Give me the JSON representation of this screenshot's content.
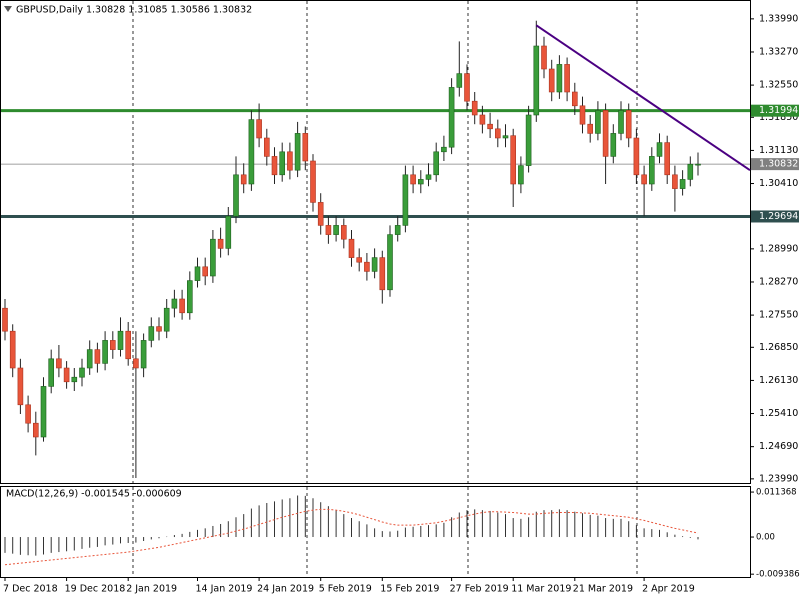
{
  "chart_data": {
    "type": "candlestick",
    "title": "GBPUSD,Daily  1.30828 1.31085 1.30586 1.30832",
    "categories": [
      "7 Dec 2018",
      null,
      null,
      null,
      null,
      null,
      null,
      null,
      "19 Dec 2018",
      null,
      null,
      null,
      null,
      null,
      null,
      null,
      "2 Jan 2019",
      null,
      null,
      null,
      null,
      null,
      null,
      null,
      null,
      "14 Jan 2019",
      null,
      null,
      null,
      null,
      null,
      null,
      null,
      "24 Jan 2019",
      null,
      null,
      null,
      null,
      null,
      null,
      null,
      "5 Feb 2019",
      null,
      null,
      null,
      null,
      null,
      null,
      null,
      "15 Feb 2019",
      null,
      null,
      null,
      null,
      null,
      null,
      null,
      null,
      "27 Feb 2019",
      null,
      null,
      null,
      null,
      null,
      null,
      null,
      "11 Mar 2019",
      null,
      null,
      null,
      null,
      null,
      null,
      null,
      "21 Mar 2019",
      null,
      null,
      null,
      null,
      null,
      null,
      null,
      null,
      "2 Apr 2019",
      null,
      null,
      null,
      null,
      null,
      null,
      null
    ],
    "open": [
      1.277,
      1.272,
      1.264,
      1.256,
      1.252,
      1.249,
      1.26,
      1.266,
      1.264,
      1.261,
      1.262,
      1.264,
      1.268,
      1.265,
      1.27,
      1.268,
      1.272,
      1.266,
      1.264,
      1.27,
      1.273,
      1.272,
      1.277,
      1.279,
      1.276,
      1.283,
      1.286,
      1.284,
      1.292,
      1.29,
      1.297,
      1.306,
      1.304,
      1.318,
      1.314,
      1.31,
      1.306,
      1.311,
      1.307,
      1.315,
      1.309,
      1.3,
      1.295,
      1.293,
      1.295,
      1.292,
      1.288,
      1.287,
      1.285,
      1.288,
      1.281,
      1.293,
      1.295,
      1.306,
      1.304,
      1.305,
      1.306,
      1.311,
      1.312,
      1.325,
      1.328,
      1.322,
      1.319,
      1.317,
      1.316,
      1.314,
      1.3145,
      1.304,
      1.308,
      1.319,
      1.334,
      1.329,
      1.324,
      1.33,
      1.324,
      1.321,
      1.317,
      1.315,
      1.32,
      1.31,
      1.315,
      1.32,
      1.314,
      1.306,
      1.304,
      1.31,
      1.313,
      1.306,
      1.303,
      1.305,
      1.30828
    ],
    "high": [
      1.279,
      1.2735,
      1.266,
      1.258,
      1.2545,
      1.262,
      1.268,
      1.269,
      1.2655,
      1.264,
      1.266,
      1.27,
      1.2695,
      1.272,
      1.272,
      1.275,
      1.274,
      1.272,
      1.2715,
      1.275,
      1.275,
      1.279,
      1.281,
      1.281,
      1.285,
      1.288,
      1.288,
      1.294,
      1.2945,
      1.299,
      1.31,
      1.3085,
      1.32,
      1.3215,
      1.316,
      1.312,
      1.313,
      1.313,
      1.3175,
      1.3165,
      1.3105,
      1.302,
      1.297,
      1.297,
      1.2965,
      1.294,
      1.29,
      1.289,
      1.29,
      1.2895,
      1.295,
      1.297,
      1.308,
      1.308,
      1.307,
      1.3085,
      1.313,
      1.3145,
      1.327,
      1.335,
      1.33,
      1.324,
      1.321,
      1.3195,
      1.318,
      1.317,
      1.316,
      1.31,
      1.321,
      1.3395,
      1.336,
      1.331,
      1.332,
      1.3315,
      1.326,
      1.323,
      1.319,
      1.322,
      1.3215,
      1.317,
      1.322,
      1.3215,
      1.316,
      1.308,
      1.312,
      1.315,
      1.3145,
      1.308,
      1.307,
      1.31,
      1.31085
    ],
    "low": [
      1.27,
      1.262,
      1.254,
      1.25,
      1.245,
      1.248,
      1.2585,
      1.262,
      1.2595,
      1.259,
      1.26,
      1.2625,
      1.263,
      1.2635,
      1.266,
      1.2665,
      1.2645,
      1.2401,
      1.262,
      1.2685,
      1.27,
      1.2705,
      1.275,
      1.2745,
      1.2745,
      1.2815,
      1.282,
      1.2825,
      1.288,
      1.2885,
      1.2955,
      1.302,
      1.3025,
      1.312,
      1.308,
      1.304,
      1.3045,
      1.305,
      1.3055,
      1.307,
      1.298,
      1.293,
      1.291,
      1.2915,
      1.29,
      1.286,
      1.285,
      1.283,
      1.2835,
      1.278,
      1.2795,
      1.2915,
      1.2935,
      1.302,
      1.302,
      1.3035,
      1.3045,
      1.309,
      1.3105,
      1.323,
      1.32,
      1.317,
      1.315,
      1.314,
      1.312,
      1.312,
      1.299,
      1.302,
      1.3065,
      1.3175,
      1.327,
      1.322,
      1.3225,
      1.322,
      1.319,
      1.315,
      1.313,
      1.3135,
      1.304,
      1.3085,
      1.3135,
      1.312,
      1.304,
      1.297,
      1.3025,
      1.3085,
      1.304,
      1.298,
      1.3015,
      1.3035,
      1.30586
    ],
    "close": [
      1.272,
      1.264,
      1.256,
      1.252,
      1.249,
      1.26,
      1.266,
      1.264,
      1.261,
      1.262,
      1.264,
      1.268,
      1.265,
      1.27,
      1.268,
      1.272,
      1.266,
      1.264,
      1.27,
      1.273,
      1.272,
      1.277,
      1.279,
      1.276,
      1.283,
      1.286,
      1.284,
      1.292,
      1.29,
      1.297,
      1.306,
      1.304,
      1.318,
      1.314,
      1.31,
      1.306,
      1.311,
      1.307,
      1.315,
      1.309,
      1.3,
      1.295,
      1.293,
      1.295,
      1.292,
      1.288,
      1.287,
      1.285,
      1.288,
      1.281,
      1.293,
      1.295,
      1.306,
      1.304,
      1.305,
      1.306,
      1.311,
      1.312,
      1.325,
      1.328,
      1.322,
      1.319,
      1.317,
      1.316,
      1.314,
      1.3145,
      1.304,
      1.308,
      1.319,
      1.334,
      1.329,
      1.324,
      1.33,
      1.324,
      1.321,
      1.317,
      1.315,
      1.32,
      1.31,
      1.315,
      1.32,
      1.314,
      1.306,
      1.304,
      1.31,
      1.313,
      1.306,
      1.303,
      1.305,
      1.3083,
      1.30832
    ],
    "up_color": "#3a9d3a",
    "down_color": "#e8553a",
    "ylim": [
      1.239,
      1.344
    ],
    "yticks": [
      {
        "value": 1.3399,
        "label": "1.33990"
      },
      {
        "value": 1.3327,
        "label": "1.33270"
      },
      {
        "value": 1.3255,
        "label": "1.32550"
      },
      {
        "value": 1.3185,
        "label": "1.31850"
      },
      {
        "value": 1.3113,
        "label": "1.31130"
      },
      {
        "value": 1.3041,
        "label": "1.30410"
      },
      {
        "value": 1.2969,
        "label": "1.29690"
      },
      {
        "value": 1.2899,
        "label": "1.28990"
      },
      {
        "value": 1.2827,
        "label": "1.28270"
      },
      {
        "value": 1.2755,
        "label": "1.27550"
      },
      {
        "value": 1.2685,
        "label": "1.26850"
      },
      {
        "value": 1.2613,
        "label": "1.26130"
      },
      {
        "value": 1.2541,
        "label": "1.25410"
      },
      {
        "value": 1.2469,
        "label": "1.24690"
      },
      {
        "value": 1.2399,
        "label": "1.23990"
      }
    ],
    "levels": [
      {
        "value": 1.31994,
        "label": "1.31994",
        "color": "#2e8b2e"
      },
      {
        "value": 1.30832,
        "label": "1.30832",
        "color": "#808080"
      },
      {
        "value": 1.29694,
        "label": "1.29694",
        "color": "#2f4f4f"
      }
    ],
    "trendline": {
      "x": [
        69,
        96.75
      ],
      "values": [
        1.3385,
        1.307
      ],
      "color": "#4b0082"
    },
    "macd": {
      "type": "bar",
      "title": "MACD(12,26,9) -0.001545 -0.000609",
      "histogram": [
        -0.004,
        -0.0042,
        -0.0045,
        -0.0046,
        -0.0047,
        -0.0044,
        -0.004,
        -0.0038,
        -0.0036,
        -0.0034,
        -0.003,
        -0.0027,
        -0.0025,
        -0.0021,
        -0.0019,
        -0.0016,
        -0.0015,
        -0.0014,
        -0.001,
        -0.0006,
        -0.0003,
        0.0001,
        0.0005,
        0.0008,
        0.0013,
        0.0018,
        0.0022,
        0.0028,
        0.0033,
        0.004,
        0.005,
        0.0058,
        0.0072,
        0.008,
        0.0086,
        0.009,
        0.0095,
        0.0098,
        0.0105,
        0.0104,
        0.0098,
        0.0088,
        0.0078,
        0.0068,
        0.0058,
        0.0048,
        0.004,
        0.0032,
        0.0022,
        0.0015,
        0.0014,
        0.0016,
        0.0024,
        0.0026,
        0.0028,
        0.003,
        0.0032,
        0.0036,
        0.005,
        0.0062,
        0.0068,
        0.007,
        0.0068,
        0.0066,
        0.0062,
        0.0058,
        0.0048,
        0.0046,
        0.005,
        0.0064,
        0.0068,
        0.0068,
        0.007,
        0.0068,
        0.0064,
        0.006,
        0.0056,
        0.0054,
        0.0048,
        0.0046,
        0.0046,
        0.004,
        0.003,
        0.0022,
        0.002,
        0.0018,
        0.0012,
        0.0006,
        0.0002,
        -0.0002,
        -0.0006
      ],
      "signal": [
        -0.007,
        -0.0068,
        -0.0066,
        -0.0064,
        -0.0062,
        -0.006,
        -0.0058,
        -0.0056,
        -0.0054,
        -0.0052,
        -0.005,
        -0.0048,
        -0.0046,
        -0.0044,
        -0.0042,
        -0.004,
        -0.0038,
        -0.0035,
        -0.0032,
        -0.0029,
        -0.0026,
        -0.0022,
        -0.0018,
        -0.0014,
        -0.001,
        -0.0006,
        -0.0002,
        0.0002,
        0.0006,
        0.001,
        0.0015,
        0.002,
        0.0026,
        0.0032,
        0.0038,
        0.0044,
        0.005,
        0.0055,
        0.006,
        0.0065,
        0.0068,
        0.007,
        0.007,
        0.0068,
        0.0065,
        0.0061,
        0.0056,
        0.005,
        0.0044,
        0.0038,
        0.0033,
        0.003,
        0.003,
        0.003,
        0.0032,
        0.0034,
        0.0036,
        0.004,
        0.0044,
        0.0049,
        0.0054,
        0.0058,
        0.0062,
        0.0064,
        0.0064,
        0.0063,
        0.0062,
        0.006,
        0.0058,
        0.0058,
        0.006,
        0.0061,
        0.0062,
        0.0062,
        0.0062,
        0.0061,
        0.006,
        0.0058,
        0.0056,
        0.0054,
        0.0052,
        0.005,
        0.0046,
        0.0042,
        0.0037,
        0.0032,
        0.0027,
        0.0022,
        0.0018,
        0.0014,
        0.001
      ],
      "color": "#333333",
      "signal_color": "#e8553a",
      "ylim": [
        -0.0101,
        0.0129
      ],
      "yticks": [
        0.011368,
        {
          "value": 0,
          "label": "0.00"
        },
        -0.009386
      ]
    }
  }
}
